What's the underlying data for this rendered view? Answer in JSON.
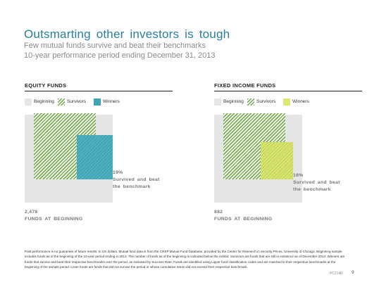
{
  "header": {
    "title": "Outsmarting other investors is tough",
    "subtitle_line1": "Few mutual funds survive and beat their benchmarks",
    "subtitle_line2": "10-year performance period ending December 31, 2013"
  },
  "legend": {
    "beginning": "Beginning",
    "survivors": "Survivors",
    "winners": "Winners"
  },
  "colors": {
    "beginning": "#e6e6e6",
    "survivors": "#6fa84a",
    "winners_equity": "#3ea5b6",
    "winners_fixed_income": "#dce672",
    "title": "#2a7f9e"
  },
  "panels": {
    "equity": {
      "title": "EQUITY FUNDS",
      "fund_count": "2,478",
      "fund_count_label": "FUNDS AT BEGINNING",
      "winners_pct": "19%",
      "winners_label": "Survived and beat the benchmark"
    },
    "fixed_income": {
      "title": "FIXED INCOME FUNDS",
      "fund_count": "882",
      "fund_count_label": "FUNDS AT BEGINNING",
      "winners_pct": "16%",
      "winners_label": "Survived and beat the benchmark"
    }
  },
  "footnote": "Past performance is no guarantee of future results. In US dollars. Mutual fund data is from the CRSP Mutual Fund Database, provided by the Center for Research in Security Prices, University of Chicago. Beginning sample includes funds as of the beginning of the 10-year period ending in 2013. The number of funds as of the beginning is indicated below the exhibit. Survivors are funds that are still in existence as of December 2013. Winners are funds that survive and beat their respective benchmarks over the period, as indicated by Success Rate. Funds are identified using Lipper fund classification codes and are matched to their respective benchmarks at the beginning of the sample period. Loser funds are funds that did not survive the period or whose cumulative return did not exceed their respective benchmark.",
  "footer": {
    "code": "PC2140",
    "page_number": "9"
  }
}
